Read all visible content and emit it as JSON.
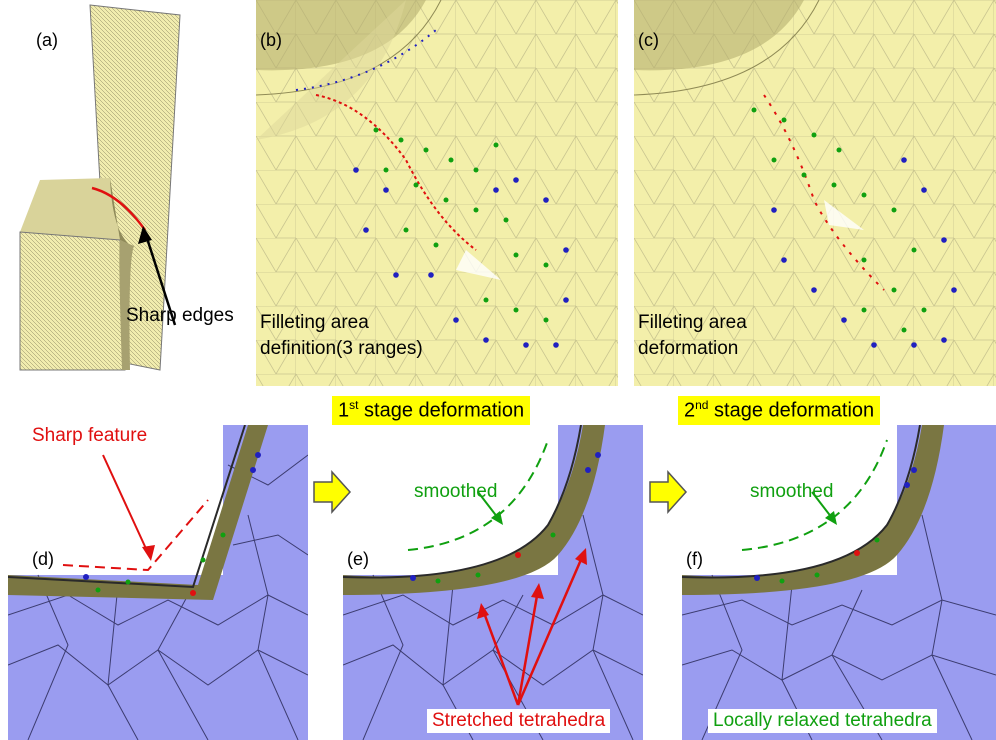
{
  "panels": {
    "a": {
      "label": "(a)",
      "annotation": "Sharp edges"
    },
    "b": {
      "label": "(b)",
      "caption_line1": "Filleting area",
      "caption_line2": "definition(3 ranges)"
    },
    "c": {
      "label": "(c)",
      "caption_line1": "Filleting area",
      "caption_line2": "deformation"
    },
    "d": {
      "label": "(d)",
      "annotation": "Sharp feature"
    },
    "e": {
      "label": "(e)",
      "annotation": "smoothed",
      "box_label": "Stretched tetrahedra"
    },
    "f": {
      "label": "(f)",
      "annotation": "smoothed",
      "box_label": "Locally relaxed tetrahedra"
    }
  },
  "stages": {
    "first": {
      "ordinal": "1",
      "suffix": "st",
      "text": " stage deformation"
    },
    "second": {
      "ordinal": "2",
      "suffix": "nd",
      "text": " stage deformation"
    }
  },
  "colors": {
    "mesh_yellow": "#f4f0a8",
    "mesh_dark": "#6f6a3c",
    "tet_blue": "#9a9cf0",
    "red": "#e01010",
    "green": "#10a010",
    "node_blue": "#2020c0",
    "highlight": "#ffff00"
  }
}
